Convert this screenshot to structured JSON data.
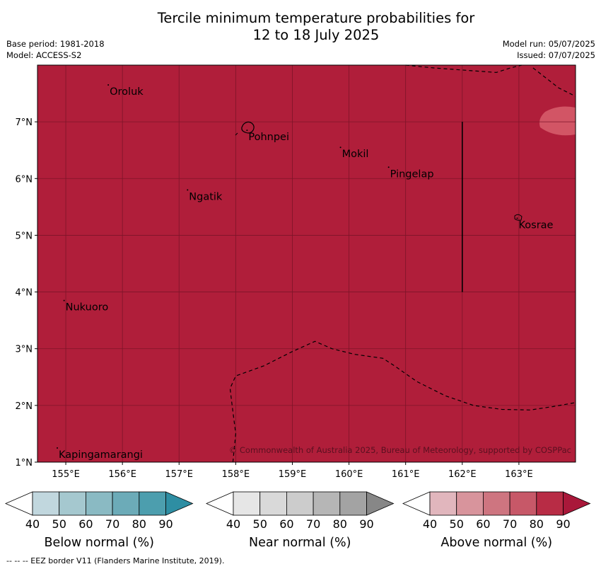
{
  "title_line1": "Tercile minimum temperature probabilities for",
  "title_line2": "12 to 18 July 2025",
  "base_period": "Base period: 1981-2018",
  "model": "Model: ACCESS-S2",
  "model_run": "Model run: 05/07/2025",
  "issued": "Issued: 07/07/2025",
  "copyright": "© Commonwealth of Australia 2025, Bureau of Meteorology, supported by COSPPac",
  "footer": "--  --  -- EEZ border V11 (Flanders Marine Institute, 2019).",
  "map": {
    "lon_range": [
      154.5,
      164.0
    ],
    "lat_range": [
      1.0,
      8.0
    ],
    "fill_color": "#b01e3a",
    "high_patch_color": "#d25565",
    "lon_ticks": [
      {
        "value": 155,
        "label": "155°E"
      },
      {
        "value": 156,
        "label": "156°E"
      },
      {
        "value": 157,
        "label": "157°E"
      },
      {
        "value": 158,
        "label": "158°E"
      },
      {
        "value": 159,
        "label": "159°E"
      },
      {
        "value": 160,
        "label": "160°E"
      },
      {
        "value": 161,
        "label": "161°E"
      },
      {
        "value": 162,
        "label": "162°E"
      },
      {
        "value": 163,
        "label": "163°E"
      }
    ],
    "lat_ticks": [
      {
        "value": 7,
        "label": "7°N"
      },
      {
        "value": 6,
        "label": "6°N"
      },
      {
        "value": 5,
        "label": "5°N"
      },
      {
        "value": 4,
        "label": "4°N"
      },
      {
        "value": 3,
        "label": "3°N"
      },
      {
        "value": 2,
        "label": "2°N"
      },
      {
        "value": 1,
        "label": "1°N"
      }
    ],
    "places": [
      {
        "name": "Oroluk",
        "lon": 155.75,
        "lat": 7.65
      },
      {
        "name": "Pohnpei",
        "lon": 158.2,
        "lat": 6.85
      },
      {
        "name": "Mokil",
        "lon": 159.85,
        "lat": 6.55
      },
      {
        "name": "Pingelap",
        "lon": 160.7,
        "lat": 6.2
      },
      {
        "name": "Ngatik",
        "lon": 157.15,
        "lat": 5.8
      },
      {
        "name": "Kosrae",
        "lon": 162.97,
        "lat": 5.3
      },
      {
        "name": "Nukuoro",
        "lon": 154.97,
        "lat": 3.85
      },
      {
        "name": "Kapingamarangi",
        "lon": 154.85,
        "lat": 1.25
      }
    ],
    "eez_north": [
      [
        161.0,
        8.0
      ],
      [
        161.5,
        7.95
      ],
      [
        162.6,
        7.87
      ],
      [
        162.85,
        7.95
      ],
      [
        163.05,
        8.0
      ]
    ],
    "eez_northeast": [
      [
        163.25,
        7.95
      ],
      [
        163.7,
        7.6
      ],
      [
        164.0,
        7.45
      ]
    ],
    "eez_south": [
      [
        157.95,
        1.0
      ],
      [
        158.0,
        1.5
      ],
      [
        157.93,
        2.05
      ],
      [
        157.9,
        2.3
      ],
      [
        158.0,
        2.52
      ],
      [
        158.5,
        2.7
      ],
      [
        159.0,
        2.95
      ],
      [
        159.4,
        3.13
      ],
      [
        159.7,
        3.0
      ],
      [
        160.1,
        2.9
      ],
      [
        160.6,
        2.83
      ],
      [
        160.8,
        2.7
      ],
      [
        161.2,
        2.42
      ],
      [
        161.7,
        2.17
      ],
      [
        162.2,
        2.0
      ],
      [
        162.7,
        1.93
      ],
      [
        163.2,
        1.92
      ],
      [
        163.6,
        1.98
      ],
      [
        164.0,
        2.05
      ]
    ],
    "boundary_line": {
      "lon": 162.0,
      "lat_from": 4.0,
      "lat_to": 7.0
    }
  },
  "colorbars": [
    {
      "label": "Below normal (%)",
      "colors": [
        "#c1d7de",
        "#a5c8cf",
        "#8abac3",
        "#6cabb8",
        "#4c9eae",
        "#2e8ea3"
      ],
      "ticks": [
        "40",
        "50",
        "60",
        "70",
        "80",
        "90"
      ]
    },
    {
      "label": "Near normal (%)",
      "colors": [
        "#e6e6e6",
        "#d9d9d9",
        "#cccccc",
        "#b6b6b6",
        "#a3a3a3",
        "#878787"
      ],
      "ticks": [
        "40",
        "50",
        "60",
        "70",
        "80",
        "90"
      ]
    },
    {
      "label": "Above normal (%)",
      "colors": [
        "#e1b6bd",
        "#d8949c",
        "#ce7580",
        "#c75868",
        "#b82c45",
        "#a9183a"
      ],
      "ticks": [
        "40",
        "50",
        "60",
        "70",
        "80",
        "90"
      ]
    }
  ]
}
